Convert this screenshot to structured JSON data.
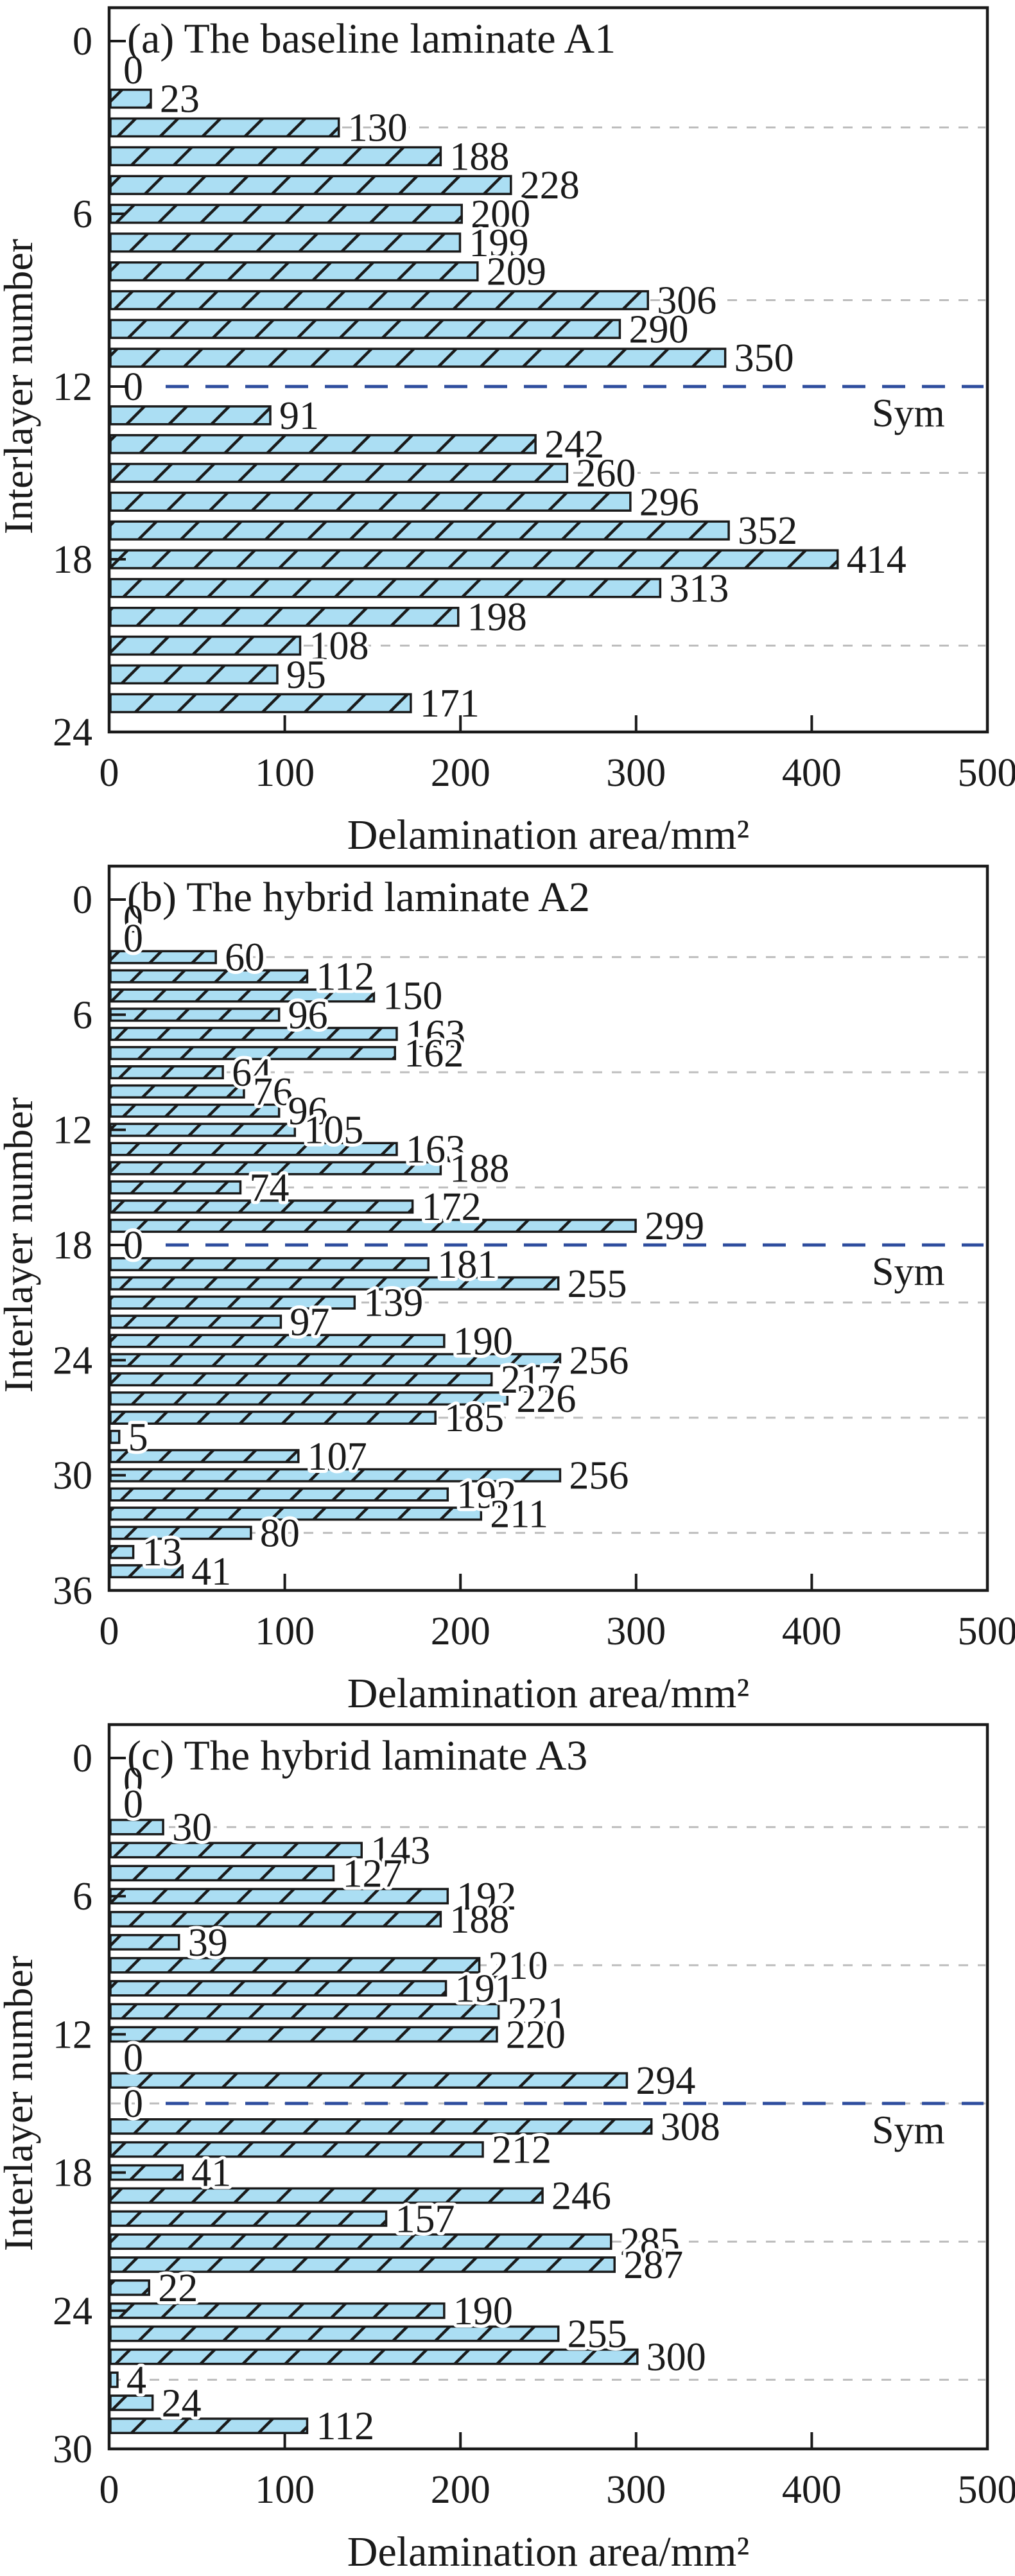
{
  "figure": {
    "y_axis_label": "Interlayer number",
    "x_axis_label": "Delamination area/mm²",
    "sym_label": "Sym",
    "colors": {
      "bar_fill": "#abdef3",
      "bar_edge": "#1a1a1a",
      "hatch": "#1a1a1a",
      "frame": "#1a1a1a",
      "minor_grid": "#bdbdbd",
      "sym_line": "#2e4d9e",
      "text": "#1a1a1a",
      "background": "#ffffff"
    }
  },
  "chart_data": [
    {
      "id": "a",
      "type": "bar",
      "orientation": "horizontal",
      "title": "(a) The baseline laminate A1",
      "xlabel": "Delamination area/mm²",
      "ylabel": "Interlayer number",
      "xlim": [
        0,
        500
      ],
      "x_ticks": [
        0,
        100,
        200,
        300,
        400,
        500
      ],
      "ylim": [
        0,
        24
      ],
      "y_ticks": [
        0,
        6,
        12,
        18,
        24
      ],
      "minor_gridlines_y": [
        3,
        9,
        15,
        21
      ],
      "symmetry_line_y": 12,
      "sym_label": "Sym",
      "categories": [
        1,
        2,
        3,
        4,
        5,
        6,
        7,
        8,
        9,
        10,
        11,
        12,
        13,
        14,
        15,
        16,
        17,
        18,
        19,
        20,
        21,
        22,
        23
      ],
      "values": [
        0,
        23,
        130,
        188,
        228,
        200,
        199,
        209,
        306,
        290,
        350,
        0,
        91,
        242,
        260,
        296,
        352,
        414,
        313,
        198,
        108,
        95,
        171
      ]
    },
    {
      "id": "b",
      "type": "bar",
      "orientation": "horizontal",
      "title": "(b) The hybrid laminate A2",
      "xlabel": "Delamination area/mm²",
      "ylabel": "Interlayer number",
      "xlim": [
        0,
        500
      ],
      "x_ticks": [
        0,
        100,
        200,
        300,
        400,
        500
      ],
      "ylim": [
        0,
        36
      ],
      "y_ticks": [
        0,
        6,
        12,
        18,
        24,
        30,
        36
      ],
      "minor_gridlines_y": [
        3,
        9,
        15,
        21,
        27,
        33
      ],
      "symmetry_line_y": 18,
      "sym_label": "Sym",
      "categories": [
        1,
        2,
        3,
        4,
        5,
        6,
        7,
        8,
        9,
        10,
        11,
        12,
        13,
        14,
        15,
        16,
        17,
        18,
        19,
        20,
        21,
        22,
        23,
        24,
        25,
        26,
        27,
        28,
        29,
        30,
        31,
        32,
        33,
        34,
        35
      ],
      "values": [
        0,
        0,
        60,
        112,
        150,
        96,
        163,
        162,
        64,
        76,
        96,
        105,
        163,
        188,
        74,
        172,
        299,
        0,
        181,
        255,
        139,
        97,
        190,
        256,
        217,
        226,
        185,
        5,
        107,
        256,
        192,
        211,
        80,
        13,
        41
      ]
    },
    {
      "id": "c",
      "type": "bar",
      "orientation": "horizontal",
      "title": "(c) The hybrid laminate A3",
      "xlabel": "Delamination area/mm²",
      "ylabel": "Interlayer number",
      "xlim": [
        0,
        500
      ],
      "x_ticks": [
        0,
        100,
        200,
        300,
        400,
        500
      ],
      "ylim": [
        0,
        30
      ],
      "y_ticks": [
        0,
        6,
        12,
        18,
        24,
        30
      ],
      "minor_gridlines_y": [
        3,
        9,
        15,
        21,
        27
      ],
      "symmetry_line_y": 15,
      "sym_label": "Sym",
      "categories": [
        1,
        2,
        3,
        4,
        5,
        6,
        7,
        8,
        9,
        10,
        11,
        12,
        13,
        14,
        15,
        16,
        17,
        18,
        19,
        20,
        21,
        22,
        23,
        24,
        25,
        26,
        27,
        28,
        29
      ],
      "values": [
        0,
        0,
        30,
        143,
        127,
        192,
        188,
        39,
        210,
        191,
        221,
        220,
        0,
        294,
        0,
        308,
        212,
        41,
        246,
        157,
        285,
        287,
        22,
        190,
        255,
        300,
        4,
        24,
        112
      ]
    }
  ]
}
